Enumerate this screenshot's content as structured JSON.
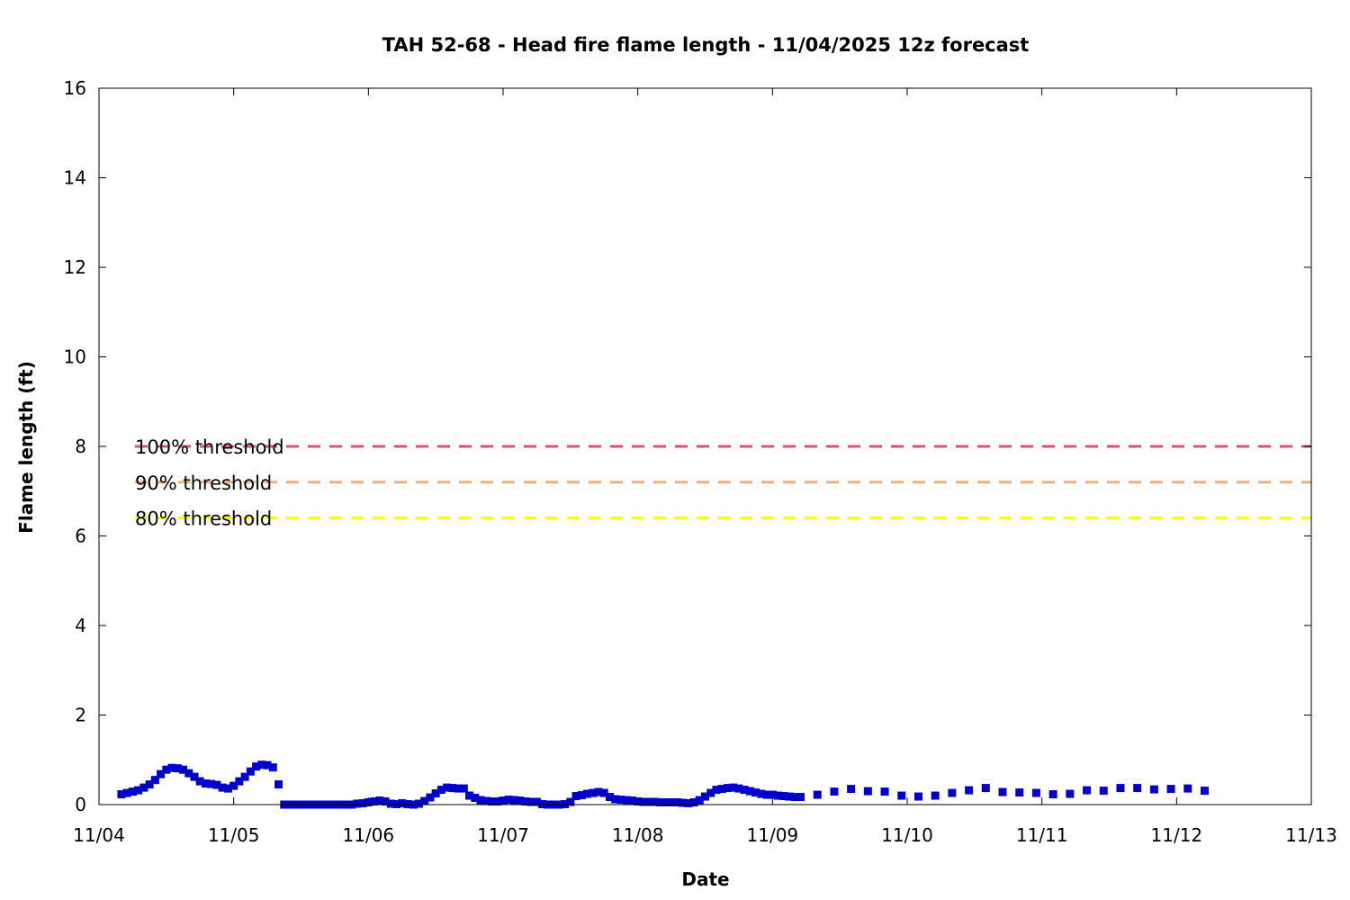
{
  "chart_data": {
    "type": "scatter",
    "title": "TAH 52-68 - Head fire flame length - 11/04/2025 12z forecast",
    "xlabel": "Date",
    "ylabel": "Flame length (ft)",
    "xlim": [
      "2025-11-04T00:00",
      "2025-11-13T00:00"
    ],
    "ylim": [
      0,
      16
    ],
    "x_tick_labels": [
      "11/04",
      "11/05",
      "11/06",
      "11/07",
      "11/08",
      "11/09",
      "11/10",
      "11/11",
      "11/12",
      "11/13"
    ],
    "y_tick_labels": [
      "0",
      "2",
      "4",
      "6",
      "8",
      "10",
      "12",
      "14",
      "16"
    ],
    "grid": false,
    "marker_color": "#0000cc",
    "thresholds": [
      {
        "name": "100% threshold",
        "value": 8.0,
        "color": "#d6537a"
      },
      {
        "name": "90% threshold",
        "value": 7.2,
        "color": "#f0b078"
      },
      {
        "name": "80% threshold",
        "value": 6.4,
        "color": "#ffff00"
      }
    ],
    "series": [
      {
        "points": [
          [
            "2025-11-04T04:00",
            0.23
          ],
          [
            "2025-11-04T05:00",
            0.26
          ],
          [
            "2025-11-04T06:00",
            0.29
          ],
          [
            "2025-11-04T07:00",
            0.32
          ],
          [
            "2025-11-04T08:00",
            0.38
          ],
          [
            "2025-11-04T09:00",
            0.45
          ],
          [
            "2025-11-04T10:00",
            0.55
          ],
          [
            "2025-11-04T11:00",
            0.68
          ],
          [
            "2025-11-04T12:00",
            0.78
          ],
          [
            "2025-11-04T13:00",
            0.82
          ],
          [
            "2025-11-04T14:00",
            0.81
          ],
          [
            "2025-11-04T15:00",
            0.78
          ],
          [
            "2025-11-04T16:00",
            0.7
          ],
          [
            "2025-11-04T17:00",
            0.62
          ],
          [
            "2025-11-04T18:00",
            0.52
          ],
          [
            "2025-11-04T19:00",
            0.47
          ],
          [
            "2025-11-04T20:00",
            0.46
          ],
          [
            "2025-11-04T21:00",
            0.44
          ],
          [
            "2025-11-04T22:00",
            0.38
          ],
          [
            "2025-11-04T23:00",
            0.36
          ],
          [
            "2025-11-05T00:00",
            0.42
          ],
          [
            "2025-11-05T01:00",
            0.52
          ],
          [
            "2025-11-05T02:00",
            0.62
          ],
          [
            "2025-11-05T03:00",
            0.74
          ],
          [
            "2025-11-05T04:00",
            0.85
          ],
          [
            "2025-11-05T05:00",
            0.89
          ],
          [
            "2025-11-05T06:00",
            0.88
          ],
          [
            "2025-11-05T07:00",
            0.83
          ],
          [
            "2025-11-05T08:00",
            0.45
          ],
          [
            "2025-11-05T09:00",
            0.0
          ],
          [
            "2025-11-05T10:00",
            0.0
          ],
          [
            "2025-11-05T11:00",
            0.0
          ],
          [
            "2025-11-05T12:00",
            0.0
          ],
          [
            "2025-11-05T13:00",
            0.0
          ],
          [
            "2025-11-05T14:00",
            0.0
          ],
          [
            "2025-11-05T15:00",
            0.0
          ],
          [
            "2025-11-05T16:00",
            0.0
          ],
          [
            "2025-11-05T17:00",
            0.0
          ],
          [
            "2025-11-05T18:00",
            0.0
          ],
          [
            "2025-11-05T19:00",
            0.0
          ],
          [
            "2025-11-05T20:00",
            0.0
          ],
          [
            "2025-11-05T21:00",
            0.0
          ],
          [
            "2025-11-05T22:00",
            0.02
          ],
          [
            "2025-11-05T23:00",
            0.03
          ],
          [
            "2025-11-06T00:00",
            0.05
          ],
          [
            "2025-11-06T01:00",
            0.07
          ],
          [
            "2025-11-06T02:00",
            0.09
          ],
          [
            "2025-11-06T03:00",
            0.07
          ],
          [
            "2025-11-06T04:00",
            0.02
          ],
          [
            "2025-11-06T05:00",
            0.01
          ],
          [
            "2025-11-06T06:00",
            0.03
          ],
          [
            "2025-11-06T07:00",
            0.01
          ],
          [
            "2025-11-06T08:00",
            0.0
          ],
          [
            "2025-11-06T09:00",
            0.02
          ],
          [
            "2025-11-06T10:00",
            0.08
          ],
          [
            "2025-11-06T11:00",
            0.16
          ],
          [
            "2025-11-06T12:00",
            0.25
          ],
          [
            "2025-11-06T13:00",
            0.33
          ],
          [
            "2025-11-06T14:00",
            0.38
          ],
          [
            "2025-11-06T15:00",
            0.37
          ],
          [
            "2025-11-06T16:00",
            0.36
          ],
          [
            "2025-11-06T17:00",
            0.36
          ],
          [
            "2025-11-06T18:00",
            0.2
          ],
          [
            "2025-11-06T19:00",
            0.15
          ],
          [
            "2025-11-06T20:00",
            0.1
          ],
          [
            "2025-11-06T21:00",
            0.08
          ],
          [
            "2025-11-06T22:00",
            0.07
          ],
          [
            "2025-11-06T23:00",
            0.07
          ],
          [
            "2025-11-07T00:00",
            0.09
          ],
          [
            "2025-11-07T01:00",
            0.11
          ],
          [
            "2025-11-07T02:00",
            0.1
          ],
          [
            "2025-11-07T03:00",
            0.09
          ],
          [
            "2025-11-07T04:00",
            0.07
          ],
          [
            "2025-11-07T05:00",
            0.06
          ],
          [
            "2025-11-07T06:00",
            0.06
          ],
          [
            "2025-11-07T07:00",
            0.01
          ],
          [
            "2025-11-07T08:00",
            0.0
          ],
          [
            "2025-11-07T09:00",
            0.0
          ],
          [
            "2025-11-07T10:00",
            0.0
          ],
          [
            "2025-11-07T11:00",
            0.01
          ],
          [
            "2025-11-07T12:00",
            0.06
          ],
          [
            "2025-11-07T13:00",
            0.19
          ],
          [
            "2025-11-07T14:00",
            0.21
          ],
          [
            "2025-11-07T15:00",
            0.24
          ],
          [
            "2025-11-07T16:00",
            0.26
          ],
          [
            "2025-11-07T17:00",
            0.28
          ],
          [
            "2025-11-07T18:00",
            0.26
          ],
          [
            "2025-11-07T19:00",
            0.17
          ],
          [
            "2025-11-07T20:00",
            0.12
          ],
          [
            "2025-11-07T21:00",
            0.11
          ],
          [
            "2025-11-07T22:00",
            0.1
          ],
          [
            "2025-11-07T23:00",
            0.09
          ],
          [
            "2025-11-08T00:00",
            0.07
          ],
          [
            "2025-11-08T01:00",
            0.06
          ],
          [
            "2025-11-08T02:00",
            0.06
          ],
          [
            "2025-11-08T03:00",
            0.06
          ],
          [
            "2025-11-08T04:00",
            0.05
          ],
          [
            "2025-11-08T05:00",
            0.05
          ],
          [
            "2025-11-08T06:00",
            0.05
          ],
          [
            "2025-11-08T07:00",
            0.05
          ],
          [
            "2025-11-08T08:00",
            0.04
          ],
          [
            "2025-11-08T09:00",
            0.03
          ],
          [
            "2025-11-08T10:00",
            0.05
          ],
          [
            "2025-11-08T11:00",
            0.1
          ],
          [
            "2025-11-08T12:00",
            0.18
          ],
          [
            "2025-11-08T13:00",
            0.26
          ],
          [
            "2025-11-08T14:00",
            0.33
          ],
          [
            "2025-11-08T15:00",
            0.35
          ],
          [
            "2025-11-08T16:00",
            0.37
          ],
          [
            "2025-11-08T17:00",
            0.38
          ],
          [
            "2025-11-08T18:00",
            0.36
          ],
          [
            "2025-11-08T19:00",
            0.33
          ],
          [
            "2025-11-08T20:00",
            0.3
          ],
          [
            "2025-11-08T21:00",
            0.27
          ],
          [
            "2025-11-08T22:00",
            0.24
          ],
          [
            "2025-11-08T23:00",
            0.22
          ],
          [
            "2025-11-09T00:00",
            0.22
          ],
          [
            "2025-11-09T01:00",
            0.2
          ],
          [
            "2025-11-09T02:00",
            0.19
          ],
          [
            "2025-11-09T03:00",
            0.18
          ],
          [
            "2025-11-09T04:00",
            0.17
          ],
          [
            "2025-11-09T05:00",
            0.17
          ],
          [
            "2025-11-09T08:00",
            0.22
          ],
          [
            "2025-11-09T11:00",
            0.29
          ],
          [
            "2025-11-09T14:00",
            0.35
          ],
          [
            "2025-11-09T17:00",
            0.3
          ],
          [
            "2025-11-09T20:00",
            0.29
          ],
          [
            "2025-11-09T23:00",
            0.2
          ],
          [
            "2025-11-10T02:00",
            0.18
          ],
          [
            "2025-11-10T05:00",
            0.2
          ],
          [
            "2025-11-10T08:00",
            0.26
          ],
          [
            "2025-11-10T11:00",
            0.32
          ],
          [
            "2025-11-10T14:00",
            0.37
          ],
          [
            "2025-11-10T17:00",
            0.28
          ],
          [
            "2025-11-10T20:00",
            0.27
          ],
          [
            "2025-11-10T23:00",
            0.26
          ],
          [
            "2025-11-11T02:00",
            0.23
          ],
          [
            "2025-11-11T05:00",
            0.24
          ],
          [
            "2025-11-11T08:00",
            0.32
          ],
          [
            "2025-11-11T11:00",
            0.31
          ],
          [
            "2025-11-11T14:00",
            0.37
          ],
          [
            "2025-11-11T17:00",
            0.37
          ],
          [
            "2025-11-11T20:00",
            0.34
          ],
          [
            "2025-11-11T23:00",
            0.35
          ],
          [
            "2025-11-12T02:00",
            0.36
          ],
          [
            "2025-11-12T05:00",
            0.31
          ]
        ]
      }
    ]
  }
}
